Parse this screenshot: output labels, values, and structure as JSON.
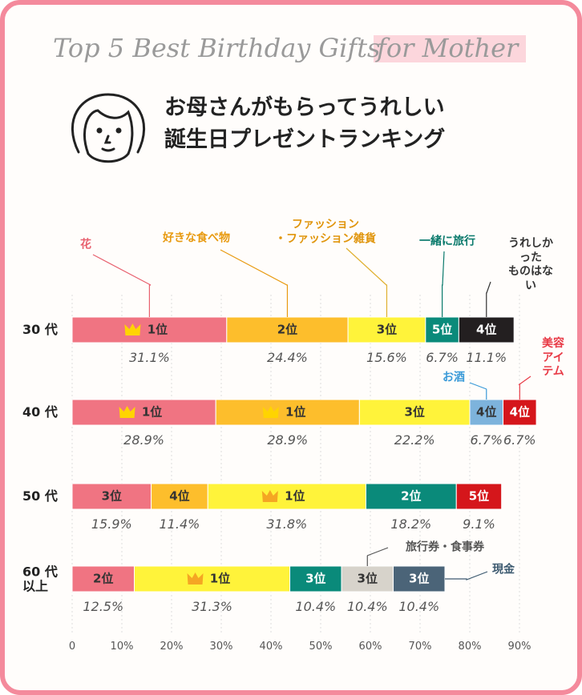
{
  "chart_data": {
    "type": "bar",
    "orientation": "horizontal",
    "stacked": true,
    "title": "Top 5 Best Birthday Gifts",
    "title_highlight": "for Mother",
    "subtitle": [
      "お母さんがもらってうれしい",
      "誕生日プレゼントランキング"
    ],
    "categories": [
      "30 代",
      "40 代",
      "50 代",
      "60 代\n以上"
    ],
    "xlim": [
      0,
      90
    ],
    "xticks": [
      0,
      {
        "value": 10,
        "label": "10%"
      },
      {
        "value": 20,
        "label": "20%"
      },
      {
        "value": 30,
        "label": "30%"
      },
      {
        "value": 40,
        "label": "40%"
      },
      {
        "value": 50,
        "label": "50%"
      },
      {
        "value": 60,
        "label": "60%"
      },
      {
        "value": 70,
        "label": "70%"
      },
      {
        "value": 80,
        "label": "80%"
      },
      {
        "value": 90,
        "label": "90%"
      }
    ],
    "grid": true,
    "series": [
      {
        "name": "花",
        "color": "#f07482",
        "label_color": "#e8606e",
        "values": [
          31.1,
          28.9,
          15.9,
          12.5
        ],
        "value_labels": [
          "31.1%",
          "28.9%",
          "15.9%",
          "12.5%"
        ],
        "ranks": [
          "1位",
          "1位",
          "3位",
          "2位"
        ]
      },
      {
        "name": "好きな食べ物",
        "color": "#fdbe2c",
        "label_color": "#e89a10",
        "values": [
          24.4,
          28.9,
          11.4,
          null
        ],
        "value_labels": [
          "24.4%",
          "28.9%",
          "11.4%",
          null
        ],
        "ranks": [
          "2位",
          "1位",
          "4位",
          null
        ]
      },
      {
        "name": "ファッション\n・ファッション雑貨",
        "color": "#fff33a",
        "label_color": "#e0950c",
        "values": [
          15.6,
          22.2,
          31.8,
          31.3
        ],
        "value_labels": [
          "15.6%",
          "22.2%",
          "31.8%",
          "31.3%"
        ],
        "ranks": [
          "3位",
          "3位",
          "1位",
          "1位"
        ]
      },
      {
        "name": "一緒に旅行",
        "color": "#0a8a7a",
        "label_color": "#0a7a6c",
        "values": [
          6.7,
          null,
          18.2,
          10.4
        ],
        "value_labels": [
          "6.7%",
          null,
          "18.2%",
          "10.4%"
        ],
        "ranks": [
          "5位",
          null,
          "2位",
          "3位"
        ]
      },
      {
        "name": "うれしかった\nものはない",
        "color": "#231f20",
        "label_color": "#333333",
        "values": [
          11.1,
          null,
          null,
          null
        ],
        "value_labels": [
          "11.1%",
          null,
          null,
          null
        ],
        "ranks": [
          "4位",
          null,
          null,
          null
        ]
      },
      {
        "name": "お酒",
        "color": "#7db3dc",
        "label_color": "#3a9ad8",
        "values": [
          null,
          6.7,
          null,
          null
        ],
        "value_labels": [
          null,
          "6.7%",
          null,
          null
        ],
        "ranks": [
          null,
          "4位",
          null,
          null
        ]
      },
      {
        "name": "美容\nアイテム",
        "color": "#d5161b",
        "label_color": "#e83a46",
        "values": [
          null,
          6.7,
          9.1,
          null
        ],
        "value_labels": [
          null,
          "6.7%",
          "9.1%",
          null
        ],
        "ranks": [
          null,
          "4位",
          "5位",
          null
        ]
      },
      {
        "name": "旅行券・食事券",
        "color": "#d7d3cb",
        "label_color": "#555555",
        "values": [
          null,
          null,
          null,
          10.4
        ],
        "value_labels": [
          null,
          null,
          null,
          "10.4%"
        ],
        "ranks": [
          null,
          null,
          null,
          "3位"
        ]
      },
      {
        "name": "現金",
        "color": "#4b6478",
        "label_color": "#3d5a70",
        "values": [
          null,
          null,
          null,
          10.4
        ],
        "value_labels": [
          null,
          null,
          null,
          "10.4%"
        ],
        "ranks": [
          null,
          null,
          null,
          "3位"
        ]
      }
    ]
  }
}
